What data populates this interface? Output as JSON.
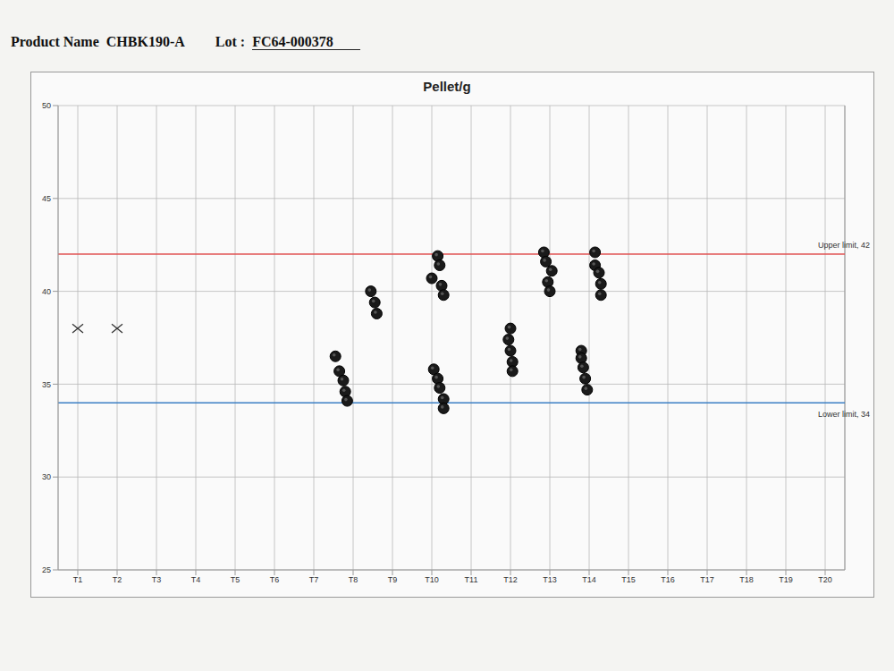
{
  "header": {
    "product_label": "Product Name",
    "product": "CHBK190-A",
    "lot_label": "Lot :",
    "lot": "FC64-000378"
  },
  "chart_data": {
    "type": "scatter",
    "title": "Pellet/g",
    "xlim": [
      0.5,
      20.5
    ],
    "xticks": [
      {
        "value": 1,
        "label": "T1"
      },
      {
        "value": 2,
        "label": "T2"
      },
      {
        "value": 3,
        "label": "T3"
      },
      {
        "value": 4,
        "label": "T4"
      },
      {
        "value": 5,
        "label": "T5"
      },
      {
        "value": 6,
        "label": "T6"
      },
      {
        "value": 7,
        "label": "T7"
      },
      {
        "value": 8,
        "label": "T8"
      },
      {
        "value": 9,
        "label": "T9"
      },
      {
        "value": 10,
        "label": "T10"
      },
      {
        "value": 11,
        "label": "T11"
      },
      {
        "value": 12,
        "label": "T12"
      },
      {
        "value": 13,
        "label": "T13"
      },
      {
        "value": 14,
        "label": "T14"
      },
      {
        "value": 15,
        "label": "T15"
      },
      {
        "value": 16,
        "label": "T16"
      },
      {
        "value": 17,
        "label": "T17"
      },
      {
        "value": 18,
        "label": "T18"
      },
      {
        "value": 19,
        "label": "T19"
      },
      {
        "value": 20,
        "label": "T20"
      }
    ],
    "ylim": [
      25,
      50
    ],
    "yticks": [
      25,
      30,
      35,
      40,
      45,
      50
    ],
    "grid": true,
    "reference_lines": [
      {
        "value": 42,
        "label": "Upper limit, 42",
        "color": "#e05555"
      },
      {
        "value": 34,
        "label": "Lower limit, 34",
        "color": "#3a7fc4"
      }
    ],
    "series": [
      {
        "marker": "x",
        "color": "#333333",
        "x": [
          1,
          2
        ],
        "values": [
          38,
          38
        ]
      },
      {
        "marker": "circle",
        "color": "#1a1a1a",
        "x": [
          7.55,
          7.65,
          7.75,
          7.8,
          7.85,
          8.45,
          8.55,
          8.6,
          10.15,
          10.2,
          10.0,
          10.25,
          10.3,
          10.05,
          10.15,
          10.2,
          10.3,
          10.3,
          12.0,
          11.95,
          12.0,
          12.05,
          12.05,
          12.85,
          12.9,
          13.05,
          12.95,
          13.0,
          13.8,
          13.8,
          13.85,
          13.9,
          13.95,
          14.15,
          14.15,
          14.25,
          14.3,
          14.3
        ],
        "values": [
          36.5,
          35.7,
          35.2,
          34.6,
          34.1,
          40.0,
          39.4,
          38.8,
          41.9,
          41.4,
          40.7,
          40.3,
          39.8,
          35.8,
          35.3,
          34.8,
          34.2,
          33.7,
          38.0,
          37.4,
          36.8,
          36.2,
          35.7,
          42.1,
          41.6,
          41.1,
          40.5,
          40.0,
          36.8,
          36.4,
          35.9,
          35.3,
          34.7,
          42.1,
          41.4,
          41.0,
          40.4,
          39.8
        ]
      }
    ]
  }
}
